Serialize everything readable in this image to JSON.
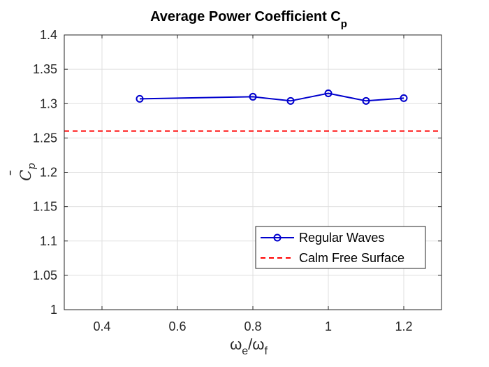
{
  "chart_data": {
    "type": "line",
    "title": "Average Power Coefficient C",
    "title_subscript": "p",
    "xlabel": {
      "base1": "ω",
      "sub1": "e",
      "sep": "/",
      "base2": "ω",
      "sub2": "f"
    },
    "ylabel": {
      "base": "C",
      "sub": "p",
      "accent": "¯"
    },
    "xlim": [
      0.3,
      1.3
    ],
    "ylim": [
      1.0,
      1.4
    ],
    "xticks": [
      0.4,
      0.6,
      0.8,
      1.0,
      1.2
    ],
    "xtick_labels": [
      "0.4",
      "0.6",
      "0.8",
      "1",
      "1.2"
    ],
    "yticks": [
      1.0,
      1.05,
      1.1,
      1.15,
      1.2,
      1.25,
      1.3,
      1.35,
      1.4
    ],
    "ytick_labels": [
      "1",
      "1.05",
      "1.1",
      "1.15",
      "1.2",
      "1.25",
      "1.3",
      "1.35",
      "1.4"
    ],
    "grid": true,
    "legend_position": "bottom-right",
    "series": [
      {
        "name": "Regular Waves",
        "color": "#0000CD",
        "style": "solid",
        "marker": "circle",
        "x": [
          0.5,
          0.8,
          0.9,
          1.0,
          1.1,
          1.2
        ],
        "values": [
          1.307,
          1.31,
          1.304,
          1.315,
          1.304,
          1.308
        ]
      },
      {
        "name": "Calm Free Surface",
        "color": "#FF0000",
        "style": "dashed",
        "marker": "none",
        "x": [
          0.3,
          1.3
        ],
        "values": [
          1.26,
          1.26
        ]
      }
    ]
  }
}
